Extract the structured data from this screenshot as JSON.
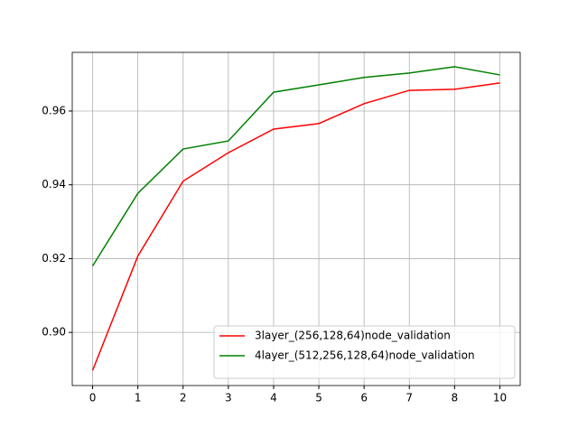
{
  "chart_data": {
    "type": "line",
    "categories": [
      "0",
      "1",
      "2",
      "3",
      "4",
      "5",
      "6",
      "7",
      "8",
      "10"
    ],
    "series": [
      {
        "name": "3layer_(256,128,64)node_validation",
        "color": "#ff0000",
        "values": [
          0.8897,
          0.9207,
          0.941,
          0.9487,
          0.9551,
          0.9566,
          0.962,
          0.9656,
          0.9659,
          0.9676
        ]
      },
      {
        "name": "4layer_(512,256,128,64)node_validation",
        "color": "#008000",
        "values": [
          0.918,
          0.9377,
          0.9497,
          0.9519,
          0.9651,
          0.9671,
          0.9691,
          0.9703,
          0.972,
          0.9698
        ]
      }
    ],
    "ylim": [
      0.8856,
      0.9759
    ],
    "yticks": [
      {
        "value": 0.9,
        "label": "0.90"
      },
      0.92,
      0.94,
      0.96
    ],
    "grid": true,
    "legend": "lower right"
  }
}
